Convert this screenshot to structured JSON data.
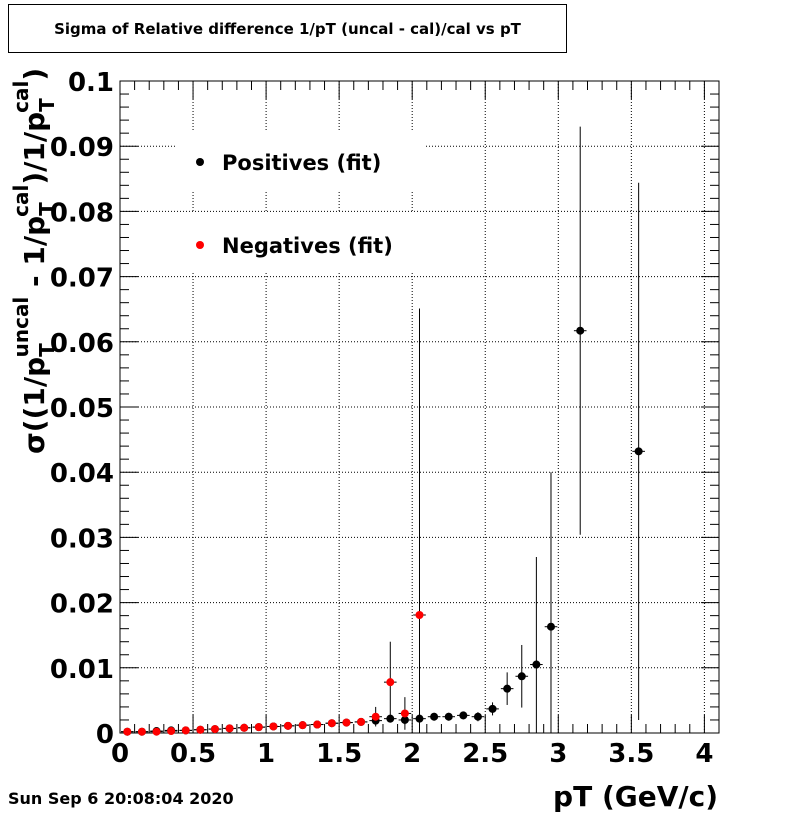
{
  "chart_data": {
    "type": "scatter",
    "title": "Sigma of Relative difference 1/pT (uncal - cal)/cal vs pT",
    "xlabel": "pT (GeV/c)",
    "ylabel": "σ((1/p_T^uncal - 1/p_T^cal)/1/p_T^cal)",
    "xlim": [
      0,
      4.1
    ],
    "ylim": [
      0,
      0.1
    ],
    "x_ticks": [
      0,
      0.5,
      1,
      1.5,
      2,
      2.5,
      3,
      3.5,
      4
    ],
    "x_tick_labels": [
      "0",
      "0.5",
      "1",
      "1.5",
      "2",
      "2.5",
      "3",
      "3.5",
      "4"
    ],
    "y_ticks": [
      0,
      0.01,
      0.02,
      0.03,
      0.04,
      0.05,
      0.06,
      0.07,
      0.08,
      0.09,
      0.1
    ],
    "y_tick_labels": [
      "0",
      "0.01",
      "0.02",
      "0.03",
      "0.04",
      "0.05",
      "0.06",
      "0.07",
      "0.08",
      "0.09",
      "0.1"
    ],
    "grid": true,
    "legend_position": "top-left",
    "series": [
      {
        "name": "Positives (fit)",
        "color": "#000000",
        "x": [
          0.05,
          0.15,
          0.25,
          0.35,
          0.45,
          0.55,
          0.65,
          0.75,
          0.85,
          0.95,
          1.05,
          1.15,
          1.25,
          1.35,
          1.45,
          1.55,
          1.65,
          1.75,
          1.85,
          1.95,
          2.05,
          2.15,
          2.25,
          2.35,
          2.45,
          2.55,
          2.65,
          2.75,
          2.85,
          2.95,
          3.15,
          3.55
        ],
        "y": [
          0.0002,
          0.0002,
          0.0003,
          0.0004,
          0.0004,
          0.0005,
          0.0006,
          0.0007,
          0.0008,
          0.0009,
          0.001,
          0.0011,
          0.0012,
          0.0013,
          0.0015,
          0.0016,
          0.0017,
          0.0019,
          0.0022,
          0.002,
          0.0022,
          0.0025,
          0.0025,
          0.0027,
          0.0025,
          0.0037,
          0.0068,
          0.0087,
          0.0105,
          0.0163,
          0.0617,
          0.0432
        ],
        "y_err": [
          0.0001,
          0.0001,
          0.0001,
          0.0001,
          0.0001,
          0.0001,
          0.0001,
          0.0001,
          0.0001,
          0.0001,
          0.0001,
          0.0001,
          0.0001,
          0.0001,
          0.0002,
          0.0002,
          0.0003,
          0.0004,
          0.0006,
          0.0007,
          0.0007,
          0.0006,
          0.0006,
          0.0006,
          0.0007,
          0.001,
          0.0025,
          0.0048,
          0.0165,
          0.0237,
          0.0313,
          0.0412
        ],
        "x_err": 0.05
      },
      {
        "name": "Negatives (fit)",
        "color": "#ff0000",
        "x": [
          0.05,
          0.15,
          0.25,
          0.35,
          0.45,
          0.55,
          0.65,
          0.75,
          0.85,
          0.95,
          1.05,
          1.15,
          1.25,
          1.35,
          1.45,
          1.55,
          1.65,
          1.75,
          1.85,
          1.95,
          2.05
        ],
        "y": [
          0.0002,
          0.0002,
          0.0002,
          0.0003,
          0.0004,
          0.0005,
          0.0006,
          0.0007,
          0.0008,
          0.0009,
          0.001,
          0.0011,
          0.0012,
          0.0013,
          0.0015,
          0.0016,
          0.0017,
          0.0025,
          0.0078,
          0.003,
          0.0181
        ],
        "y_err": [
          0.0001,
          0.0001,
          0.0001,
          0.0001,
          0.0001,
          0.0001,
          0.0001,
          0.0001,
          0.0001,
          0.0001,
          0.0001,
          0.0001,
          0.0001,
          0.0001,
          0.0002,
          0.0002,
          0.0003,
          0.0015,
          0.0062,
          0.0025,
          0.047
        ],
        "x_err": 0.05
      }
    ]
  },
  "footer": {
    "timestamp": "Sun Sep  6 20:08:04 2020"
  }
}
